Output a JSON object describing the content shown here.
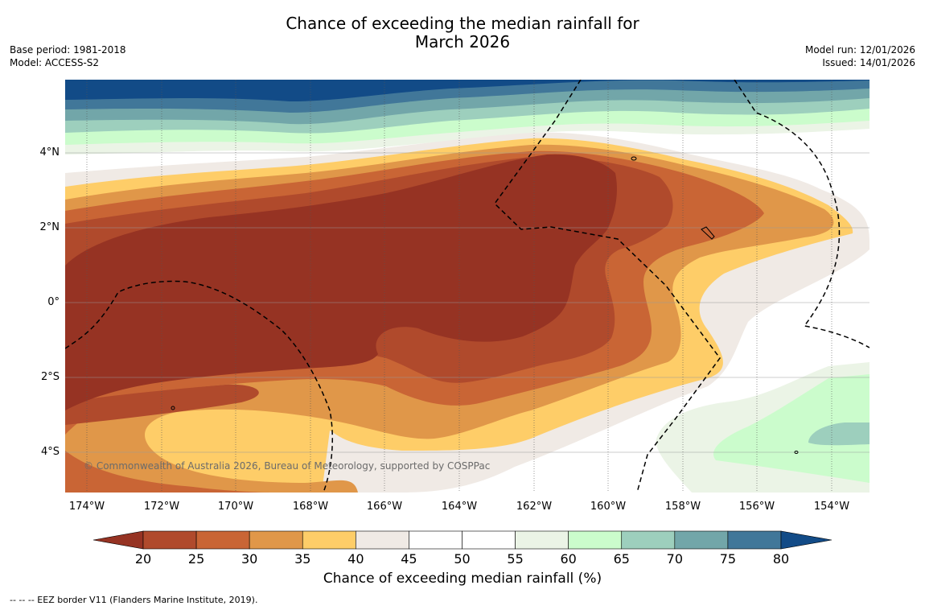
{
  "header": {
    "title_line1": "Chance of exceeding the median rainfall for",
    "title_line2": "March 2026",
    "base_period": "Base period: 1981-2018",
    "model": "Model: ACCESS-S2",
    "model_run": "Model run: 12/01/2026",
    "issued": "Issued: 14/01/2026"
  },
  "map": {
    "lat_labels": [
      "4°N",
      "2°N",
      "0°",
      "2°S",
      "4°S"
    ],
    "lon_labels": [
      "174°W",
      "172°W",
      "170°W",
      "168°W",
      "166°W",
      "164°W",
      "162°W",
      "160°W",
      "158°W",
      "156°W",
      "154°W"
    ],
    "copyright": "© Commonwealth of Australia 2026, Bureau of Meteorology, supported by COSPPac"
  },
  "colorbar": {
    "ticks": [
      "20",
      "25",
      "30",
      "35",
      "40",
      "45",
      "50",
      "55",
      "60",
      "65",
      "70",
      "75",
      "80"
    ],
    "colors": [
      "#963323",
      "#b04a2c",
      "#c96535",
      "#e09749",
      "#fecd68",
      "#f0eae5",
      "#ffffff",
      "#ffffff",
      "#ebf4e6",
      "#cbfccc",
      "#9dcfbd",
      "#72a6a9",
      "#417799",
      "#124b87"
    ],
    "label": "Chance of exceeding median rainfall (%)"
  },
  "footnote": "--  --  -- EEZ border V11 (Flanders Marine Institute, 2019)."
}
